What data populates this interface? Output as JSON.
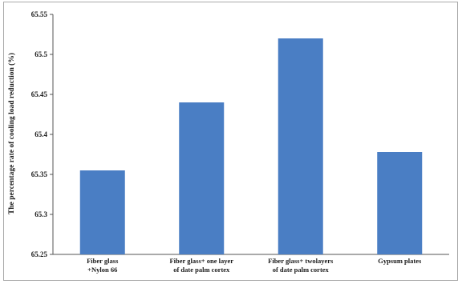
{
  "chart_data": {
    "type": "bar",
    "title": "",
    "xlabel": "",
    "ylabel": "The percentage rate of cooling load reduction (%)",
    "ylim": [
      65.25,
      65.55
    ],
    "yticks": [
      "65.25",
      "65.3",
      "65.35",
      "65.4",
      "65.45",
      "65.5",
      "65.55"
    ],
    "grid": false,
    "legend": "none",
    "bar_color": "#4a7ec4",
    "categories": [
      [
        "Fiber glass",
        "+Nylon 66"
      ],
      [
        "Fiber glass+ one layer",
        "of date palm cortex"
      ],
      [
        "Fiber glass+ twolayers",
        "of date palm cortex"
      ],
      [
        "Gypsum plates"
      ]
    ],
    "values": [
      65.355,
      65.44,
      65.52,
      65.378
    ]
  }
}
